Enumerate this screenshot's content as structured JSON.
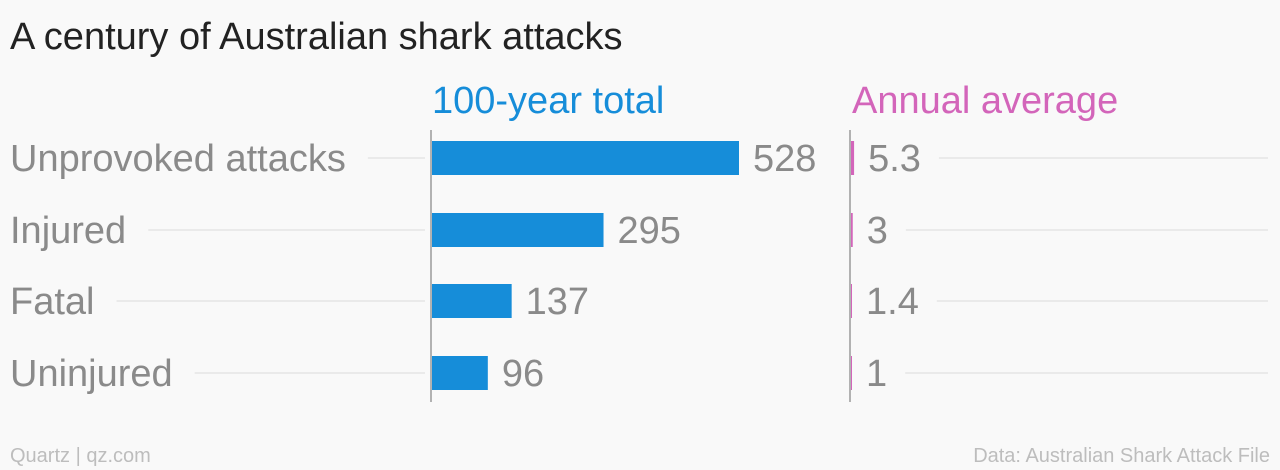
{
  "chart_data": {
    "type": "bar",
    "title": "A century of Australian shark attacks",
    "categories": [
      "Unprovoked attacks",
      "Injured",
      "Fatal",
      "Uninjured"
    ],
    "series": [
      {
        "name": "100-year total",
        "values": [
          528,
          295,
          137,
          96
        ],
        "color": "#168dd9"
      },
      {
        "name": "Annual average",
        "values": [
          5.3,
          3,
          1.4,
          1
        ],
        "value_labels": [
          "5.3",
          "3",
          "1.4",
          "1"
        ],
        "color": "#d365ba"
      }
    ],
    "xlim": [
      [
        0,
        528
      ],
      [
        0,
        528
      ]
    ],
    "grid": false,
    "legend": "column headers above bars"
  },
  "footer": {
    "source_left": "Quartz | qz.com",
    "source_right": "Data: Australian Shark Attack File"
  },
  "colors": {
    "title": "#222222",
    "label": "#8a8a8a",
    "axis": "#9a9a9a",
    "guide": "#e6e6e6",
    "footer": "#bdbdbd"
  }
}
